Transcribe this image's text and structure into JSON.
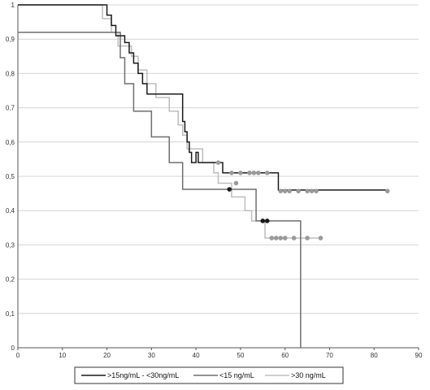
{
  "chart_data": {
    "type": "line",
    "title": "",
    "xlabel": "",
    "ylabel": "",
    "xlim": [
      0,
      90
    ],
    "ylim": [
      0,
      1
    ],
    "x_ticks": [
      "0",
      "10",
      "20",
      "30",
      "40",
      "50",
      "60",
      "70",
      "80",
      "90"
    ],
    "y_ticks": [
      "0",
      "0,1",
      "0,2",
      "0,3",
      "0,4",
      "0,5",
      "0,6",
      "0,7",
      "0,8",
      "0,9",
      "1"
    ],
    "grid": "horizontal",
    "legend_position": "bottom",
    "series": [
      {
        "name": ">15ng/mL - <30ng/mL",
        "color": "#1a1a1a",
        "marker_color": "#9a9a9a",
        "x": [
          0,
          19,
          20,
          21,
          22,
          24,
          25,
          26,
          27,
          28,
          29,
          31,
          32,
          34,
          36,
          37,
          37.5,
          38,
          38.5,
          39,
          40,
          40.5,
          41,
          46,
          48,
          58.5,
          60,
          83
        ],
        "y": [
          1,
          1,
          0.97,
          0.94,
          0.91,
          0.89,
          0.86,
          0.83,
          0.8,
          0.77,
          0.74,
          0.74,
          0.74,
          0.74,
          0.74,
          0.66,
          0.63,
          0.6,
          0.57,
          0.54,
          0.57,
          0.54,
          0.54,
          0.51,
          0.51,
          0.46,
          0.46,
          0.46
        ],
        "censored": [
          [
            48,
            0.51
          ],
          [
            50,
            0.51
          ],
          [
            52,
            0.51
          ],
          [
            53,
            0.51
          ],
          [
            54,
            0.51
          ],
          [
            56,
            0.51
          ],
          [
            59,
            0.457
          ],
          [
            60,
            0.457
          ],
          [
            61,
            0.457
          ],
          [
            63,
            0.457
          ],
          [
            65,
            0.457
          ],
          [
            66,
            0.457
          ],
          [
            67,
            0.457
          ],
          [
            83,
            0.457
          ]
        ]
      },
      {
        "name": "<15 ng/mL",
        "color": "#6f6f6f",
        "marker_color": "#1a1a1a",
        "x": [
          0,
          16.5,
          23,
          24,
          26,
          30,
          34,
          37,
          51,
          52,
          53.5,
          63.5
        ],
        "y": [
          0.92,
          0.92,
          0.846,
          0.77,
          0.69,
          0.615,
          0.54,
          0.462,
          0.462,
          0.462,
          0.37,
          0
        ],
        "censored": [
          [
            47.5,
            0.462
          ],
          [
            55,
            0.37
          ],
          [
            56,
            0.37
          ]
        ]
      },
      {
        "name": ">30 ng/mL",
        "color": "#bdbdbd",
        "marker_color": "#9a9a9a",
        "x": [
          0,
          18,
          19,
          21,
          22.5,
          25.5,
          27,
          29,
          31,
          34,
          36,
          37,
          38,
          41.5,
          44,
          45,
          48,
          51,
          52.5,
          55.5,
          57,
          68
        ],
        "y": [
          1,
          1,
          0.96,
          0.92,
          0.88,
          0.85,
          0.81,
          0.77,
          0.73,
          0.69,
          0.65,
          0.62,
          0.58,
          0.54,
          0.51,
          0.48,
          0.44,
          0.4,
          0.37,
          0.32,
          0.32,
          0.32
        ],
        "censored": [
          [
            45,
            0.54
          ],
          [
            49,
            0.48
          ],
          [
            57,
            0.32
          ],
          [
            58,
            0.32
          ],
          [
            59,
            0.32
          ],
          [
            60,
            0.32
          ],
          [
            62,
            0.32
          ],
          [
            65,
            0.32
          ],
          [
            68,
            0.32
          ]
        ]
      }
    ]
  }
}
